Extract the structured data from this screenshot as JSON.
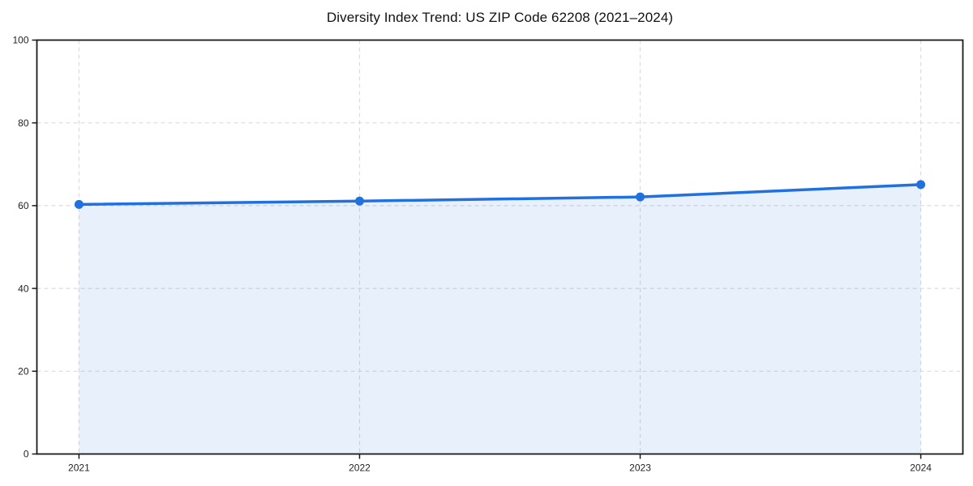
{
  "chart_data": {
    "type": "area",
    "title": "Diversity Index Trend: US ZIP Code 62208 (2021–2024)",
    "x": [
      "2021",
      "2022",
      "2023",
      "2024"
    ],
    "values": [
      60.3,
      61.1,
      62.1,
      65.1
    ],
    "xlabel": "",
    "ylabel": "",
    "ylim": [
      0,
      100
    ],
    "yticks": [
      0,
      20,
      40,
      60,
      80,
      100
    ],
    "grid": true,
    "grid_style": "dashed",
    "legend": "none",
    "marker": "circle",
    "colors": {
      "line": "#2170e0",
      "marker": "#2170e0",
      "fill": "rgba(33,112,224,0.10)",
      "grid": "#dcdcdc",
      "spine": "#1a1a1a",
      "tick_label": "#222222",
      "title": "#111111",
      "background": "#ffffff"
    }
  }
}
